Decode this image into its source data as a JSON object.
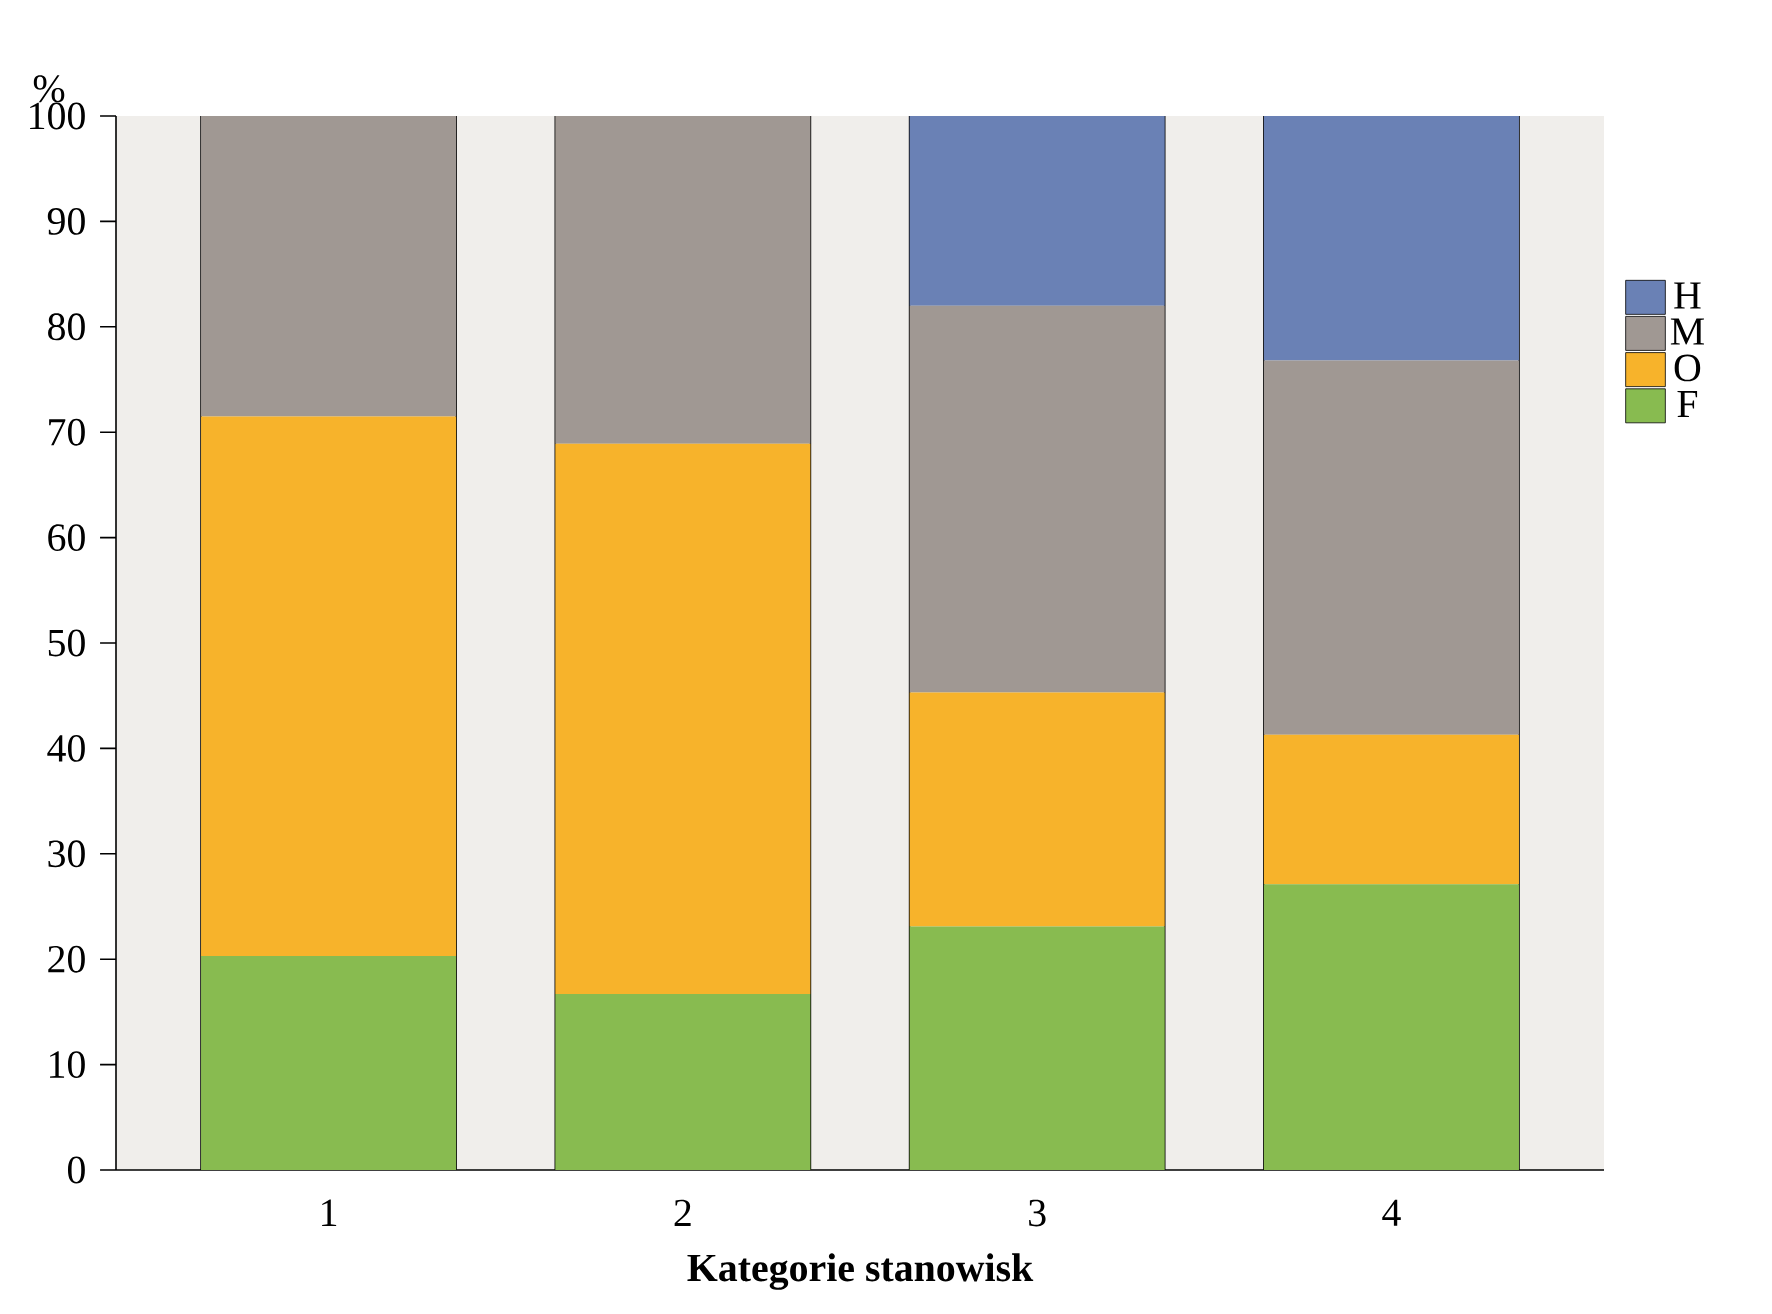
{
  "chart_data": {
    "type": "bar",
    "stacked": true,
    "xlabel": "Kategorie stanowisk",
    "ylabel": "%",
    "categories": [
      "1",
      "2",
      "3",
      "4"
    ],
    "series": [
      {
        "name": "F",
        "color": "#88bb50",
        "values": [
          20.3,
          16.7,
          23.1,
          27.1
        ]
      },
      {
        "name": "O",
        "color": "#f7b32b",
        "values": [
          51.2,
          52.2,
          22.2,
          14.2
        ]
      },
      {
        "name": "M",
        "color": "#a09893",
        "values": [
          28.5,
          31.1,
          36.7,
          35.5
        ]
      },
      {
        "name": "H",
        "color": "#6a81b5",
        "values": [
          0,
          0,
          18.0,
          23.2
        ]
      }
    ],
    "ylim": [
      0,
      100
    ],
    "yticks": [
      0,
      10,
      20,
      30,
      40,
      50,
      60,
      70,
      80,
      90,
      100
    ],
    "legend": "right"
  }
}
